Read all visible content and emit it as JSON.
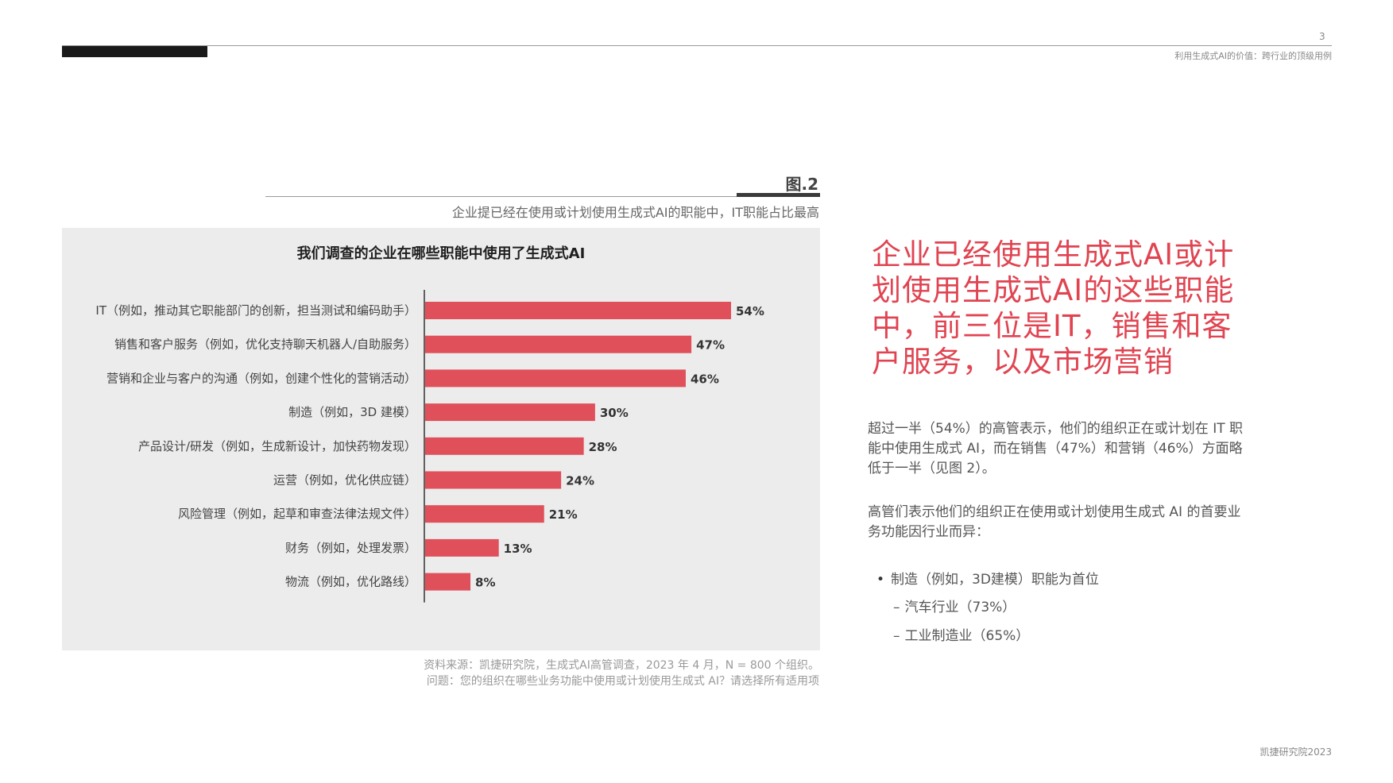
{
  "header": {
    "page_number": "3",
    "running_title": "利用生成式AI的价值：跨行业的顶级用例"
  },
  "figure": {
    "label": "图.2",
    "caption": "企业提已经在使用或计划使用生成式AI的职能中，IT职能占比最高"
  },
  "chart_data": {
    "type": "bar",
    "orientation": "horizontal",
    "title": "我们调查的企业在哪些职能中使用了生成式AI",
    "categories": [
      "IT（例如，推动其它职能部门的创新，担当测试和编码助手）",
      "销售和客户服务（例如，优化支持聊天机器人/自助服务）",
      "营销和企业与客户的沟通（例如，创建个性化的营销活动）",
      "制造（例如，3D 建模）",
      "产品设计/研发（例如，生成新设计，加快药物发现）",
      "运营（例如，优化供应链）",
      "风险管理（例如，起草和审查法律法规文件）",
      "财务（例如，处理发票）",
      "物流（例如，优化路线）"
    ],
    "values": [
      54,
      47,
      46,
      30,
      28,
      24,
      21,
      13,
      8
    ],
    "value_labels": [
      "54%",
      "47%",
      "46%",
      "30%",
      "28%",
      "24%",
      "21%",
      "13%",
      "8%"
    ],
    "unit": "%",
    "xlim": [
      0,
      100
    ],
    "grid": false,
    "legend": "none",
    "bar_color": "#e0505b"
  },
  "source": {
    "line1": "资料来源：凯捷研究院，生成式AI高管调查，2023 年 4 月，N = 800 个组织。",
    "line2": "问题：您的组织在哪些业务功能中使用或计划使用生成式 AI？请选择所有适用项"
  },
  "sidebar": {
    "headline": "企业已经使用生成式AI或计划使用生成式AI的这些职能中，前三位是IT，销售和客户服务，以及市场营销",
    "paragraph1": "超过一半（54%）的高管表示，他们的组织正在或计划在 IT 职能中使用生成式 AI，而在销售（47%）和营销（46%）方面略低于一半（见图 2）。",
    "paragraph2": "高管们表示他们的组织正在使用或计划使用生成式 AI 的首要业务功能因行业而异：",
    "bullet": "制造（例如，3D建模）职能为首位",
    "sub_items": [
      "汽车行业（73%）",
      "工业制造业（65%）"
    ],
    "bullet_glyph": "•",
    "dash_glyph": "–",
    "headline_color": "#e04451"
  },
  "footer": {
    "text": "凯捷研究院2023"
  }
}
